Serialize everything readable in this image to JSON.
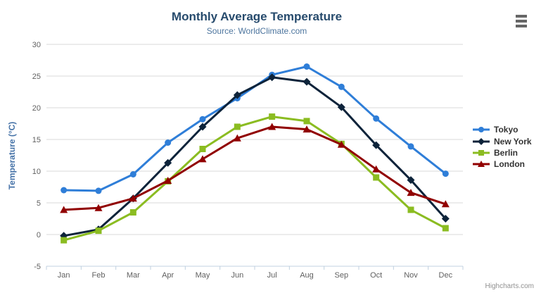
{
  "header": {
    "title": "Monthly Average Temperature",
    "subtitle": "Source: WorldClimate.com"
  },
  "y_axis": {
    "title": "Temperature (°C)"
  },
  "credits": {
    "label": "Highcharts.com"
  },
  "colors": {
    "title": "#274b6d",
    "subtitle": "#4d759e",
    "axis_title": "#4572a7",
    "tick_label": "#606060",
    "gridline": "#d8d8d8",
    "axis_line": "#c0d0e0",
    "legend_text": "#333333",
    "credits": "#909090",
    "menu_icon": "#666666",
    "background": "#ffffff"
  },
  "chart_data": {
    "type": "line",
    "title": "Monthly Average Temperature",
    "subtitle": "Source: WorldClimate.com",
    "categories": [
      "Jan",
      "Feb",
      "Mar",
      "Apr",
      "May",
      "Jun",
      "Jul",
      "Aug",
      "Sep",
      "Oct",
      "Nov",
      "Dec"
    ],
    "series": [
      {
        "name": "Tokyo",
        "color": "#2f7ed8",
        "marker": "circle",
        "values": [
          7.0,
          6.9,
          9.5,
          14.5,
          18.2,
          21.5,
          25.2,
          26.5,
          23.3,
          18.3,
          13.9,
          9.6
        ]
      },
      {
        "name": "New York",
        "color": "#0d233a",
        "marker": "diamond",
        "values": [
          -0.2,
          0.8,
          5.7,
          11.3,
          17.0,
          22.0,
          24.8,
          24.1,
          20.1,
          14.1,
          8.6,
          2.5
        ]
      },
      {
        "name": "Berlin",
        "color": "#8bbc21",
        "marker": "square",
        "values": [
          -0.9,
          0.6,
          3.5,
          8.4,
          13.5,
          17.0,
          18.6,
          17.9,
          14.3,
          9.0,
          3.9,
          1.0
        ]
      },
      {
        "name": "London",
        "color": "#910000",
        "marker": "triangle",
        "values": [
          3.9,
          4.2,
          5.7,
          8.5,
          11.9,
          15.2,
          17.0,
          16.6,
          14.2,
          10.3,
          6.6,
          4.8
        ]
      }
    ],
    "xlabel": "",
    "ylabel": "Temperature (°C)",
    "ylim": [
      -5,
      30
    ],
    "ytick_step": 5,
    "grid": true,
    "legend_position": "right"
  }
}
